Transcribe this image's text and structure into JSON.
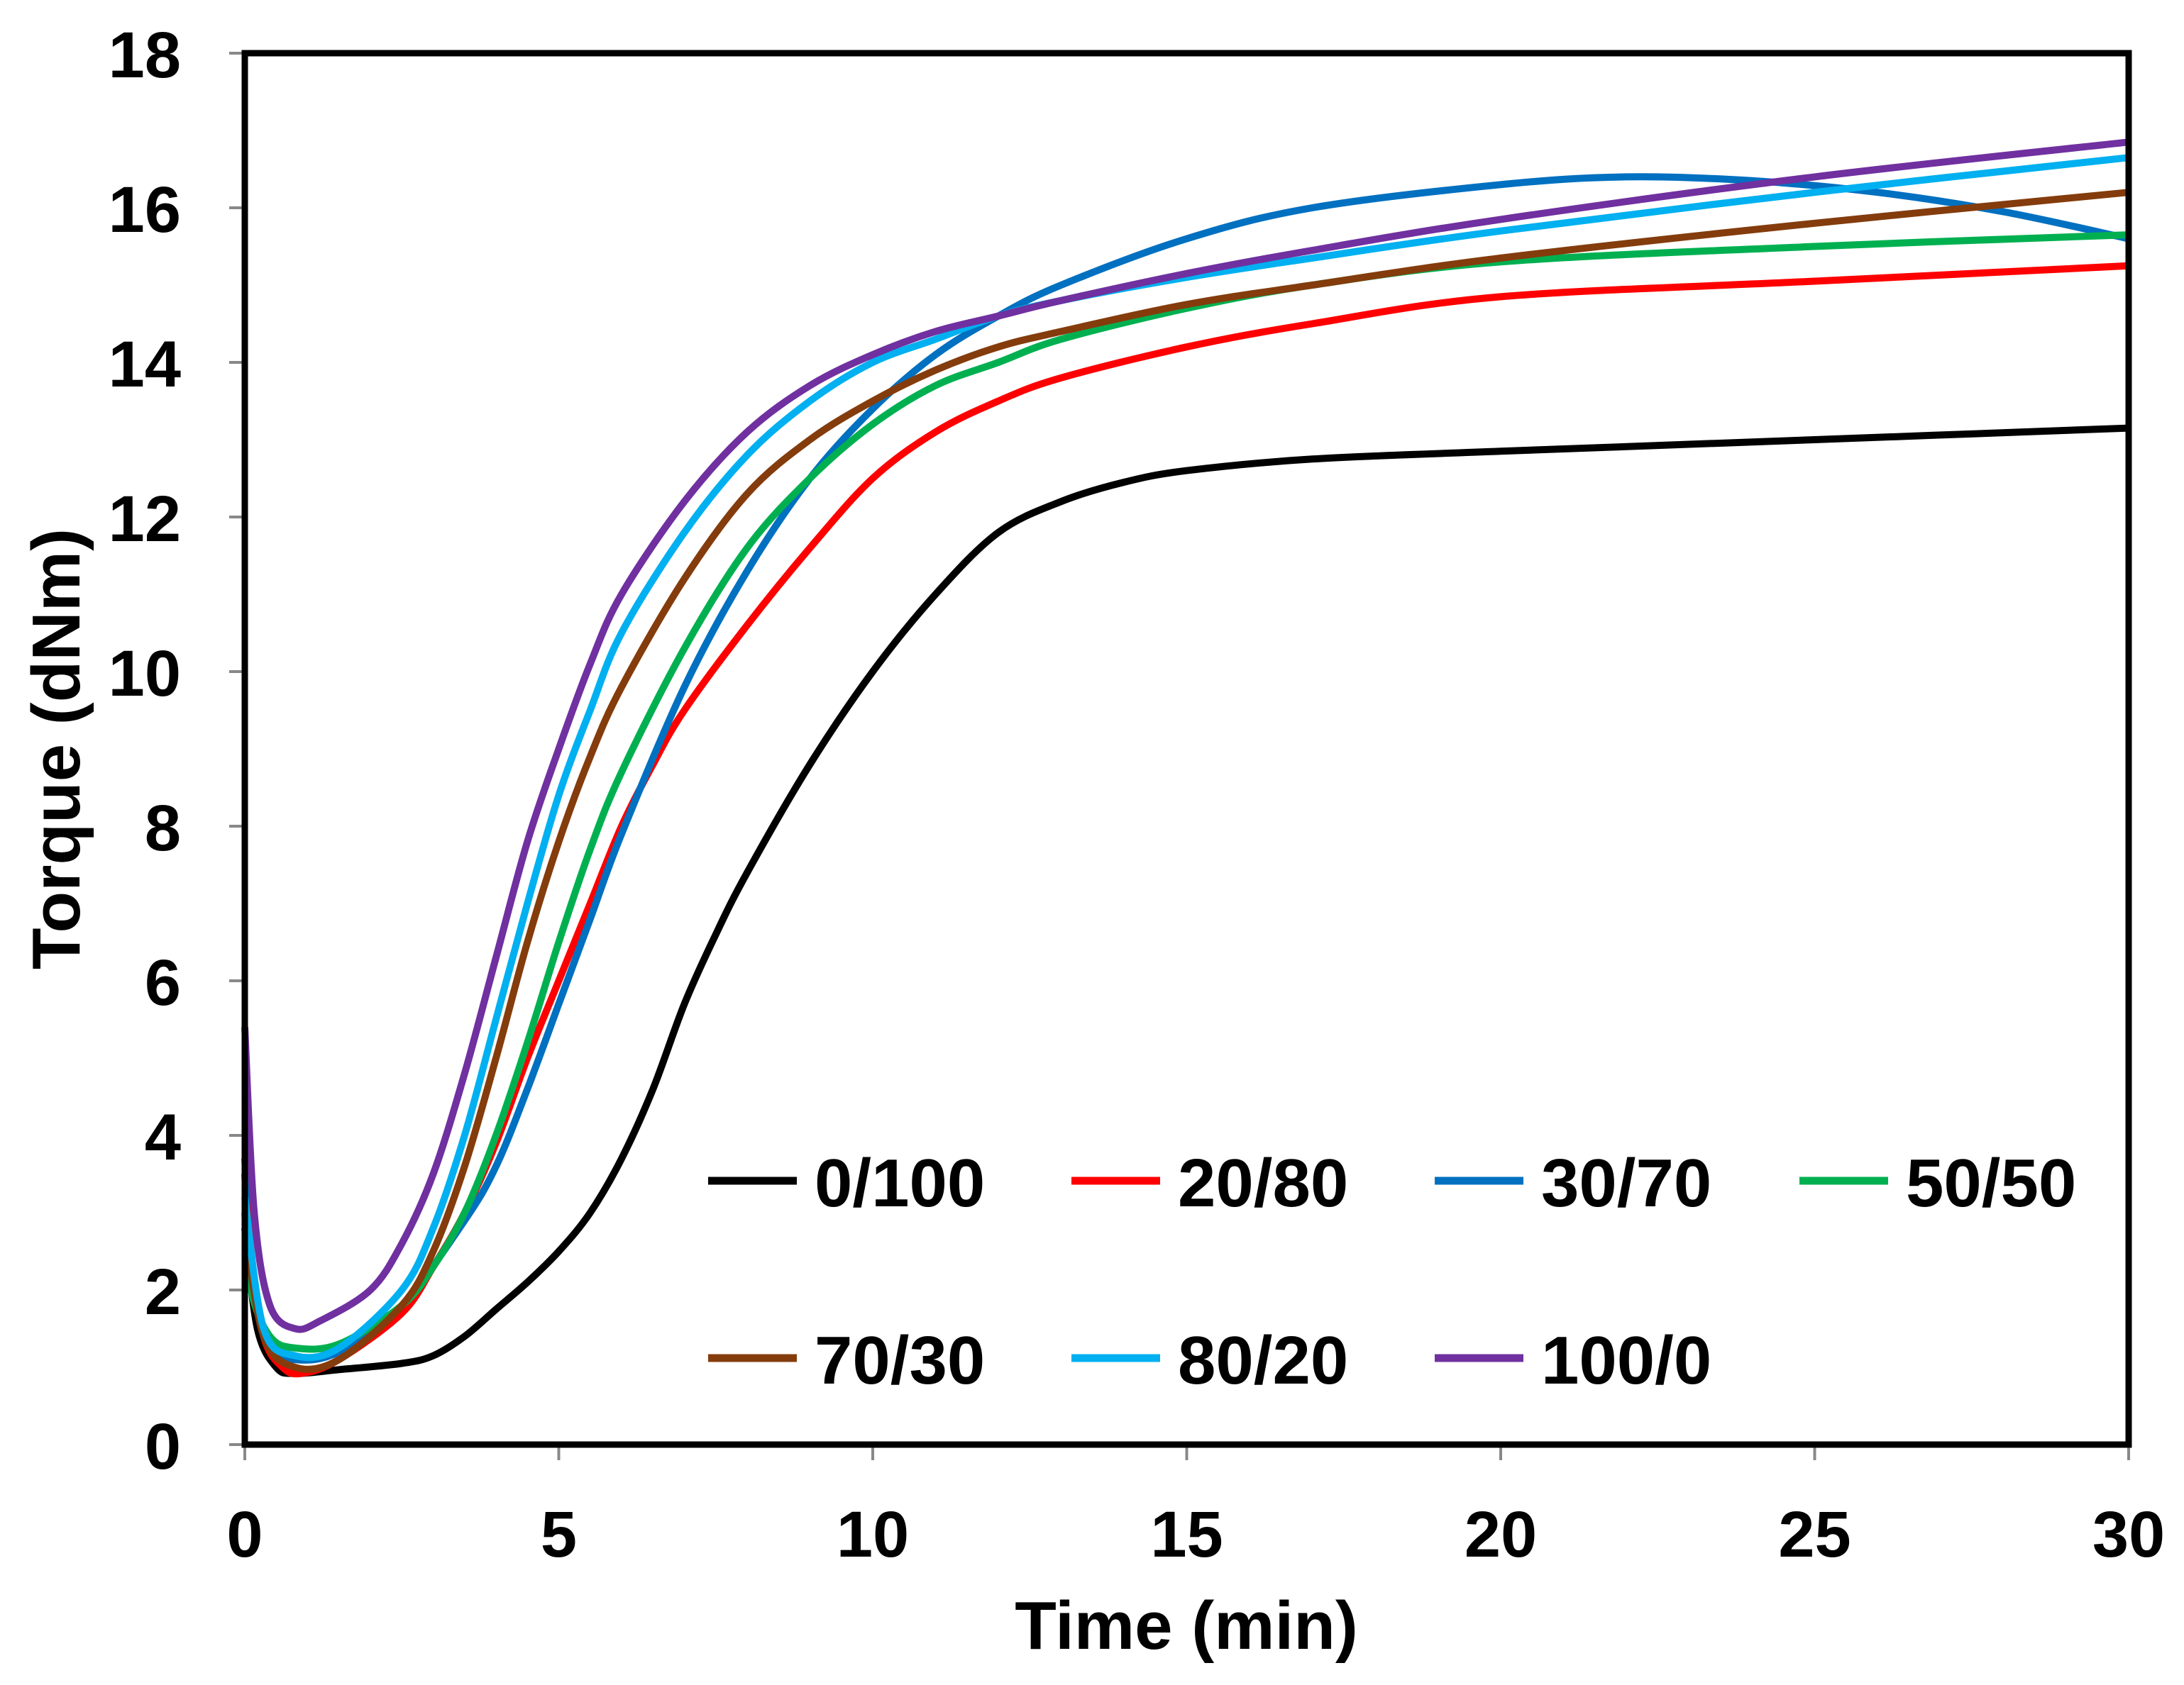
{
  "chart_data": {
    "type": "line",
    "title": "",
    "xlabel": "Time (min)",
    "ylabel": "Torque (dNm)",
    "xlim": [
      0,
      30
    ],
    "ylim": [
      0,
      18
    ],
    "xticks": [
      0,
      5,
      10,
      15,
      20,
      25,
      30
    ],
    "yticks": [
      0,
      2,
      4,
      6,
      8,
      10,
      12,
      14,
      16,
      18
    ],
    "grid": false,
    "legend_placement": "bottom-right",
    "series": [
      {
        "name": "0/100",
        "color": "#000000",
        "points": [
          [
            0,
            2.8
          ],
          [
            0.2,
            1.5
          ],
          [
            0.5,
            1.0
          ],
          [
            0.8,
            0.92
          ],
          [
            1.5,
            0.97
          ],
          [
            2.5,
            1.05
          ],
          [
            3,
            1.15
          ],
          [
            3.5,
            1.4
          ],
          [
            4,
            1.75
          ],
          [
            4.5,
            2.1
          ],
          [
            5,
            2.5
          ],
          [
            5.5,
            3.0
          ],
          [
            6,
            3.7
          ],
          [
            6.5,
            4.6
          ],
          [
            7,
            5.7
          ],
          [
            7.5,
            6.6
          ],
          [
            8,
            7.4
          ],
          [
            9,
            8.8
          ],
          [
            10,
            10.0
          ],
          [
            11,
            11.0
          ],
          [
            12,
            11.8
          ],
          [
            13,
            12.2
          ],
          [
            14,
            12.45
          ],
          [
            15,
            12.6
          ],
          [
            17,
            12.75
          ],
          [
            20,
            12.85
          ],
          [
            25,
            13.0
          ],
          [
            30,
            13.15
          ]
        ]
      },
      {
        "name": "20/80",
        "color": "#ff0000",
        "points": [
          [
            0,
            3.7
          ],
          [
            0.1,
            2.5
          ],
          [
            0.3,
            1.4
          ],
          [
            0.6,
            1.0
          ],
          [
            0.9,
            0.92
          ],
          [
            1.5,
            1.1
          ],
          [
            2.5,
            1.7
          ],
          [
            3,
            2.3
          ],
          [
            3.5,
            3.0
          ],
          [
            4,
            3.9
          ],
          [
            4.5,
            5.0
          ],
          [
            5,
            6.0
          ],
          [
            5.5,
            7.0
          ],
          [
            6,
            8.0
          ],
          [
            6.5,
            8.8
          ],
          [
            7,
            9.5
          ],
          [
            8,
            10.6
          ],
          [
            9,
            11.6
          ],
          [
            10,
            12.5
          ],
          [
            11,
            13.1
          ],
          [
            12,
            13.5
          ],
          [
            13,
            13.8
          ],
          [
            15,
            14.2
          ],
          [
            17,
            14.5
          ],
          [
            20,
            14.85
          ],
          [
            25,
            15.05
          ],
          [
            30,
            15.25
          ]
        ]
      },
      {
        "name": "30/70",
        "color": "#0070c0",
        "points": [
          [
            0,
            3.5
          ],
          [
            0.1,
            2.2
          ],
          [
            0.4,
            1.3
          ],
          [
            0.8,
            1.1
          ],
          [
            1.5,
            1.2
          ],
          [
            2.5,
            1.8
          ],
          [
            3.5,
            2.9
          ],
          [
            4,
            3.6
          ],
          [
            4.5,
            4.6
          ],
          [
            5,
            5.7
          ],
          [
            5.5,
            6.8
          ],
          [
            6,
            7.9
          ],
          [
            7,
            9.8
          ],
          [
            8,
            11.3
          ],
          [
            9,
            12.5
          ],
          [
            10,
            13.4
          ],
          [
            11,
            14.1
          ],
          [
            12,
            14.6
          ],
          [
            13,
            15.0
          ],
          [
            15,
            15.6
          ],
          [
            17,
            16.0
          ],
          [
            20,
            16.3
          ],
          [
            22,
            16.4
          ],
          [
            24,
            16.35
          ],
          [
            26,
            16.2
          ],
          [
            28,
            15.95
          ],
          [
            30,
            15.6
          ]
        ]
      },
      {
        "name": "50/50",
        "color": "#00b050",
        "points": [
          [
            0,
            3.0
          ],
          [
            0.1,
            2.0
          ],
          [
            0.4,
            1.4
          ],
          [
            0.8,
            1.25
          ],
          [
            1.5,
            1.3
          ],
          [
            2.5,
            1.8
          ],
          [
            3,
            2.3
          ],
          [
            3.5,
            3.0
          ],
          [
            4,
            4.0
          ],
          [
            4.5,
            5.2
          ],
          [
            5,
            6.5
          ],
          [
            5.5,
            7.7
          ],
          [
            6,
            8.7
          ],
          [
            7,
            10.3
          ],
          [
            8,
            11.6
          ],
          [
            9,
            12.5
          ],
          [
            10,
            13.2
          ],
          [
            11,
            13.7
          ],
          [
            12,
            14.0
          ],
          [
            13,
            14.3
          ],
          [
            15,
            14.7
          ],
          [
            17,
            15.0
          ],
          [
            20,
            15.3
          ],
          [
            25,
            15.5
          ],
          [
            30,
            15.65
          ]
        ]
      },
      {
        "name": "70/30",
        "color": "#843c0c",
        "points": [
          [
            0,
            2.8
          ],
          [
            0.3,
            1.4
          ],
          [
            0.8,
            1.0
          ],
          [
            1.5,
            1.1
          ],
          [
            2.5,
            1.8
          ],
          [
            3,
            2.5
          ],
          [
            3.5,
            3.6
          ],
          [
            4,
            5.0
          ],
          [
            4.5,
            6.5
          ],
          [
            5,
            7.8
          ],
          [
            5.5,
            8.9
          ],
          [
            6,
            9.8
          ],
          [
            7,
            11.2
          ],
          [
            8,
            12.3
          ],
          [
            9,
            13.0
          ],
          [
            10,
            13.5
          ],
          [
            11,
            13.9
          ],
          [
            12,
            14.2
          ],
          [
            13,
            14.4
          ],
          [
            15,
            14.75
          ],
          [
            17,
            15.0
          ],
          [
            20,
            15.35
          ],
          [
            25,
            15.8
          ],
          [
            30,
            16.2
          ]
        ]
      },
      {
        "name": "80/20",
        "color": "#00b0f0",
        "points": [
          [
            0,
            3.2
          ],
          [
            0.3,
            1.5
          ],
          [
            0.8,
            1.15
          ],
          [
            1.5,
            1.25
          ],
          [
            2.5,
            2.0
          ],
          [
            3,
            2.8
          ],
          [
            3.5,
            4.0
          ],
          [
            4,
            5.5
          ],
          [
            4.5,
            7.0
          ],
          [
            5,
            8.4
          ],
          [
            5.5,
            9.5
          ],
          [
            6,
            10.5
          ],
          [
            7,
            11.8
          ],
          [
            8,
            12.8
          ],
          [
            9,
            13.5
          ],
          [
            10,
            14.0
          ],
          [
            11,
            14.3
          ],
          [
            12,
            14.6
          ],
          [
            13,
            14.8
          ],
          [
            15,
            15.1
          ],
          [
            17,
            15.35
          ],
          [
            20,
            15.7
          ],
          [
            25,
            16.2
          ],
          [
            30,
            16.65
          ]
        ]
      },
      {
        "name": "100/0",
        "color": "#7030a0",
        "points": [
          [
            0,
            5.4
          ],
          [
            0.15,
            3.0
          ],
          [
            0.4,
            1.8
          ],
          [
            0.8,
            1.5
          ],
          [
            1.2,
            1.6
          ],
          [
            2,
            2.0
          ],
          [
            2.5,
            2.6
          ],
          [
            3,
            3.5
          ],
          [
            3.5,
            4.8
          ],
          [
            4,
            6.3
          ],
          [
            4.5,
            7.8
          ],
          [
            5,
            9.0
          ],
          [
            5.5,
            10.1
          ],
          [
            6,
            11.0
          ],
          [
            7,
            12.2
          ],
          [
            8,
            13.1
          ],
          [
            9,
            13.7
          ],
          [
            10,
            14.1
          ],
          [
            11,
            14.4
          ],
          [
            12,
            14.6
          ],
          [
            13,
            14.8
          ],
          [
            15,
            15.15
          ],
          [
            17,
            15.45
          ],
          [
            20,
            15.85
          ],
          [
            25,
            16.4
          ],
          [
            30,
            16.85
          ]
        ]
      }
    ]
  }
}
